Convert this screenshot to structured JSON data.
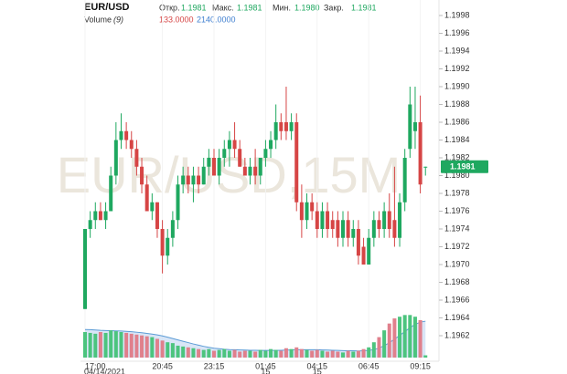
{
  "header": {
    "symbol": "EUR/USD",
    "open_label": "Откр.",
    "open": "1.1981",
    "high_label": "Макс.",
    "high": "1.1981",
    "low_label": "Мин.",
    "low": "1.1980",
    "close_label": "Закр.",
    "close": "1.1981",
    "volume_label": "Volume",
    "volume_period": "(9)",
    "volume": "133.0000",
    "volume_ma": "2140.0000"
  },
  "chart_data": {
    "type": "candlestick",
    "watermark": "EUR/USD,15M",
    "categories": [
      "17:00",
      null,
      null,
      null,
      null,
      null,
      null,
      null,
      null,
      null,
      null,
      null,
      null,
      null,
      null,
      "20:45",
      null,
      null,
      null,
      null,
      null,
      null,
      null,
      null,
      null,
      "23:15",
      null,
      null,
      null,
      null,
      null,
      null,
      null,
      null,
      null,
      "01:45",
      null,
      null,
      null,
      null,
      null,
      null,
      null,
      null,
      null,
      "04:15",
      null,
      null,
      null,
      null,
      null,
      null,
      null,
      null,
      null,
      "06:45",
      null,
      null,
      null,
      null,
      null,
      null,
      null,
      null,
      null,
      "09:15",
      null
    ],
    "x_sublabels": [
      "04/14/2021",
      null,
      null,
      null,
      null,
      null,
      null,
      null,
      null,
      null,
      null,
      null,
      null,
      null,
      null,
      null,
      null,
      null,
      null,
      null,
      null,
      null,
      null,
      null,
      null,
      null,
      null,
      null,
      null,
      null,
      null,
      null,
      null,
      null,
      null,
      "15",
      null,
      null,
      null,
      null,
      null,
      null,
      null,
      null,
      null,
      "15",
      null,
      null,
      null,
      null,
      null,
      null,
      null,
      null,
      null,
      null,
      null,
      null,
      null,
      null,
      null,
      null,
      null,
      null,
      null,
      null,
      null
    ],
    "open": [
      1.1965,
      1.1974,
      1.1975,
      1.1976,
      1.1975,
      1.1976,
      1.198,
      1.1984,
      1.1985,
      1.1984,
      1.1983,
      1.1981,
      1.1979,
      1.1976,
      1.1977,
      1.1974,
      1.1971,
      1.1973,
      1.1975,
      1.1979,
      1.198,
      1.1979,
      1.198,
      1.1979,
      1.1981,
      1.1982,
      1.198,
      1.1982,
      1.1983,
      1.1984,
      1.1983,
      1.1981,
      1.198,
      1.1981,
      1.198,
      1.1982,
      1.1983,
      1.1984,
      1.1986,
      1.1986,
      1.1985,
      1.1986,
      1.1977,
      1.1975,
      1.1977,
      1.1976,
      1.1974,
      1.1976,
      1.1975,
      1.1975,
      1.1973,
      1.1975,
      1.1973,
      1.1974,
      1.1972,
      1.197,
      1.1973,
      1.1975,
      1.1974,
      1.1976,
      1.1975,
      1.1973,
      1.1977,
      1.1983,
      1.1985,
      1.1986,
      1.1981
    ],
    "high": [
      1.1974,
      1.1976,
      1.1977,
      1.1977,
      1.1977,
      1.1981,
      1.1986,
      1.1987,
      1.1986,
      1.1985,
      1.1984,
      1.1982,
      1.198,
      1.1978,
      1.1977,
      1.1975,
      1.1974,
      1.1976,
      1.198,
      1.1981,
      1.1981,
      1.1981,
      1.1981,
      1.1982,
      1.1983,
      1.1983,
      1.1983,
      1.1984,
      1.1985,
      1.1986,
      1.1984,
      1.1982,
      1.1982,
      1.1983,
      1.1982,
      1.1984,
      1.1985,
      1.1988,
      1.1987,
      1.199,
      1.1987,
      1.1987,
      1.1979,
      1.1978,
      1.1978,
      1.1977,
      1.1977,
      1.1977,
      1.1976,
      1.1976,
      1.1976,
      1.1976,
      1.1975,
      1.1975,
      1.1973,
      1.1974,
      1.1976,
      1.1976,
      1.1977,
      1.1978,
      1.1981,
      1.1978,
      1.1983,
      1.199,
      1.199,
      1.1989,
      1.1981
    ],
    "low": [
      1.1965,
      1.1973,
      1.1974,
      1.1975,
      1.1974,
      1.1976,
      1.1979,
      1.1983,
      1.1983,
      1.1982,
      1.198,
      1.1978,
      1.1976,
      1.1975,
      1.1973,
      1.1969,
      1.197,
      1.1972,
      1.1974,
      1.1978,
      1.1978,
      1.1977,
      1.1978,
      1.1979,
      1.198,
      1.198,
      1.1979,
      1.1981,
      1.1981,
      1.1982,
      1.1981,
      1.198,
      1.1979,
      1.1979,
      1.1979,
      1.1981,
      1.1982,
      1.1983,
      1.1984,
      1.1984,
      1.1984,
      1.1976,
      1.1973,
      1.1974,
      1.1975,
      1.1973,
      1.1973,
      1.1973,
      1.1973,
      1.1972,
      1.1972,
      1.1972,
      1.1972,
      1.197,
      1.197,
      1.197,
      1.1972,
      1.1973,
      1.1973,
      1.1973,
      1.1972,
      1.1972,
      1.1976,
      1.1982,
      1.1983,
      1.1978,
      1.198
    ],
    "close": [
      1.1974,
      1.1975,
      1.1976,
      1.1975,
      1.1976,
      1.198,
      1.1984,
      1.1985,
      1.1984,
      1.1983,
      1.1981,
      1.1979,
      1.1976,
      1.1977,
      1.1974,
      1.1971,
      1.1973,
      1.1975,
      1.1979,
      1.198,
      1.1979,
      1.198,
      1.1979,
      1.1981,
      1.1982,
      1.198,
      1.1982,
      1.1983,
      1.1984,
      1.1983,
      1.1981,
      1.198,
      1.1981,
      1.198,
      1.1982,
      1.1983,
      1.1984,
      1.1986,
      1.1985,
      1.1985,
      1.1986,
      1.1977,
      1.1975,
      1.1977,
      1.1976,
      1.1974,
      1.1976,
      1.1974,
      1.1974,
      1.1973,
      1.1975,
      1.1973,
      1.1974,
      1.1971,
      1.197,
      1.1973,
      1.1975,
      1.1974,
      1.1976,
      1.1974,
      1.1973,
      1.1977,
      1.1982,
      1.1988,
      1.1986,
      1.1979,
      1.1981
    ],
    "volume": [
      1500,
      1450,
      1400,
      1500,
      1450,
      1600,
      1550,
      1500,
      1450,
      1400,
      1350,
      1300,
      1250,
      1200,
      1100,
      1000,
      900,
      850,
      700,
      650,
      600,
      550,
      500,
      450,
      500,
      400,
      450,
      500,
      400,
      450,
      350,
      400,
      400,
      350,
      450,
      400,
      500,
      450,
      400,
      550,
      500,
      600,
      500,
      450,
      400,
      450,
      400,
      350,
      400,
      350,
      300,
      400,
      350,
      400,
      500,
      600,
      900,
      1200,
      1600,
      2000,
      2300,
      2400,
      2500,
      2500,
      2400,
      2200,
      133
    ],
    "volume_ma": [
      1650,
      1640,
      1620,
      1600,
      1590,
      1580,
      1570,
      1560,
      1540,
      1520,
      1490,
      1460,
      1420,
      1380,
      1330,
      1270,
      1200,
      1120,
      1040,
      960,
      880,
      800,
      730,
      660,
      600,
      550,
      520,
      490,
      470,
      460,
      450,
      440,
      430,
      430,
      420,
      420,
      420,
      420,
      430,
      440,
      450,
      460,
      460,
      460,
      460,
      460,
      450,
      440,
      430,
      420,
      410,
      400,
      400,
      390,
      400,
      420,
      470,
      560,
      700,
      870,
      1080,
      1300,
      1530,
      1750,
      1950,
      2080,
      2140
    ],
    "ylim": [
      1.1962,
      1.1998
    ],
    "yticks": [
      1.1962,
      1.1964,
      1.1966,
      1.1968,
      {
        "value": 1.197,
        "label": "1.1970"
      },
      1.1972,
      1.1974,
      1.1976,
      1.1978,
      {
        "value": 1.198,
        "label": "1.1980"
      },
      1.1982,
      1.1984,
      1.1986,
      1.1988,
      {
        "value": 1.199,
        "label": "1.1990"
      },
      1.1992,
      1.1994,
      1.1996,
      1.1998
    ],
    "up_color": "#1fa860",
    "down_color": "#d64545",
    "volume_up_color": "#4cc47e",
    "volume_down_color": "#e0808c",
    "volume_ma_color": "#5b9bd5"
  }
}
